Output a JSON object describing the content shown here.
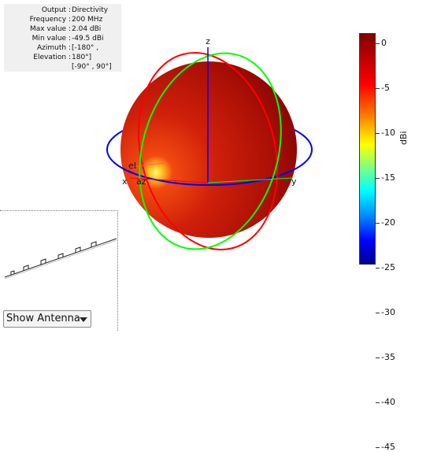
{
  "info": [
    {
      "key": "Output",
      "value": "Directivity"
    },
    {
      "key": "Frequency",
      "value": "200 MHz"
    },
    {
      "key": "Max value",
      "value": "2.04 dBi"
    },
    {
      "key": "Min value",
      "value": "-49.5 dBi"
    },
    {
      "key": "Azimuth",
      "value": "[-180° ,"
    },
    {
      "key": "Elevation",
      "value": "180°]"
    },
    {
      "key": "",
      "value": "[-90° , 90°]"
    }
  ],
  "axes": {
    "z": "z",
    "x": "x",
    "y": "y",
    "el": "el",
    "az": "az"
  },
  "colorbar": {
    "ticks": [
      "0",
      "-5",
      "-10",
      "-15",
      "-20",
      "-25",
      "-30",
      "-35",
      "-40",
      "-45"
    ],
    "unit": "dBi",
    "colors": [
      "#800000",
      "#ff0000",
      "#ffff00",
      "#00ffff",
      "#0000ff",
      "#00008f"
    ]
  },
  "dropdown": {
    "selected": "Show Antenna"
  },
  "colors": {
    "azimuth_circle": "#0000ff",
    "elevation_circle_1": "#ff0000",
    "elevation_circle_2": "#00ff00",
    "pattern": "#c41a0a"
  }
}
